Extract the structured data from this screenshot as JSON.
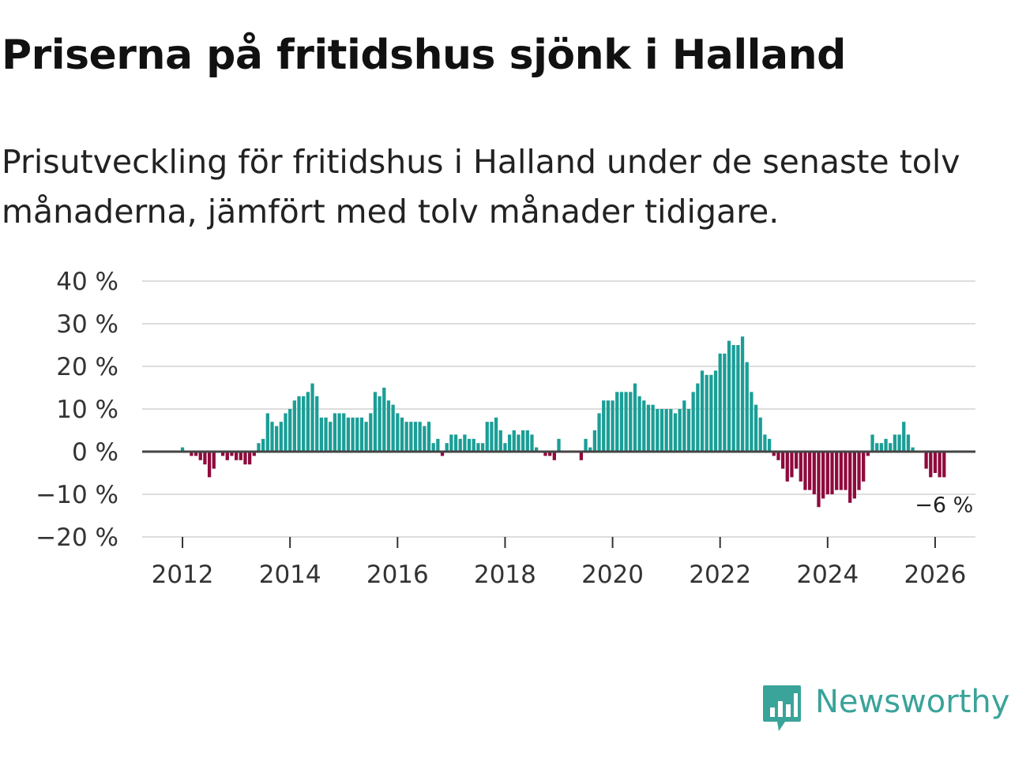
{
  "title": "Priserna på fritidshus sjönk i Halland",
  "subtitle": "Prisutveckling för fritidshus i Halland under de senaste tolv månaderna, jämfört med tolv månader tidigare.",
  "brand": {
    "name": "Newsworthy",
    "color": "#3aa39a"
  },
  "colors": {
    "positive": "#1a9e96",
    "negative": "#8f0a3c",
    "zero_line": "#444444",
    "grid": "#dddddd"
  },
  "chart_data": {
    "type": "bar",
    "title": "Priserna på fritidshus sjönk i Halland",
    "xlabel": "",
    "ylabel": "",
    "ylim": [
      -20,
      40
    ],
    "xlim": [
      2011.25,
      2026.75
    ],
    "y_ticks": [
      40,
      30,
      20,
      10,
      0,
      -10,
      -20
    ],
    "y_tick_labels": [
      "40 %",
      "30 %",
      "20 %",
      "10 %",
      "0 %",
      "−10 %",
      "−20 %"
    ],
    "x_ticks": [
      2012,
      2014,
      2016,
      2018,
      2020,
      2022,
      2024,
      2026
    ],
    "x_tick_labels": [
      "2012",
      "2014",
      "2016",
      "2018",
      "2020",
      "2022",
      "2024",
      "2026"
    ],
    "start": {
      "year": 2012,
      "month": 1
    },
    "values": [
      1,
      0,
      -1,
      -1,
      -2,
      -3,
      -6,
      -4,
      0,
      -1,
      -2,
      -1,
      -2,
      -2,
      -3,
      -3,
      -1,
      2,
      3,
      9,
      7,
      6,
      7,
      9,
      10,
      12,
      13,
      13,
      14,
      16,
      13,
      8,
      8,
      7,
      9,
      9,
      9,
      8,
      8,
      8,
      8,
      7,
      9,
      14,
      13,
      15,
      12,
      11,
      9,
      8,
      7,
      7,
      7,
      7,
      6,
      7,
      2,
      3,
      -1,
      2,
      4,
      4,
      3,
      4,
      3,
      3,
      2,
      2,
      7,
      7,
      8,
      5,
      2,
      4,
      5,
      4,
      5,
      5,
      4,
      1,
      0,
      -1,
      -1,
      -2,
      3,
      0,
      0,
      0,
      0,
      -2,
      3,
      1,
      5,
      9,
      12,
      12,
      12,
      14,
      14,
      14,
      14,
      16,
      13,
      12,
      11,
      11,
      10,
      10,
      10,
      10,
      9,
      10,
      12,
      10,
      14,
      16,
      19,
      18,
      18,
      19,
      23,
      23,
      26,
      25,
      25,
      27,
      21,
      14,
      11,
      8,
      4,
      3,
      -1,
      -2,
      -4,
      -7,
      -6,
      -4,
      -7,
      -9,
      -9,
      -10,
      -13,
      -11,
      -10,
      -10,
      -9,
      -9,
      -9,
      -12,
      -11,
      -9,
      -7,
      -1,
      4,
      2,
      2,
      3,
      2,
      4,
      4,
      7,
      4,
      1,
      0,
      0,
      -4,
      -6,
      -5,
      -6,
      -6
    ],
    "annotations": [
      {
        "text": "−6 %",
        "value": -6,
        "year": 2026,
        "month": 3
      }
    ]
  }
}
